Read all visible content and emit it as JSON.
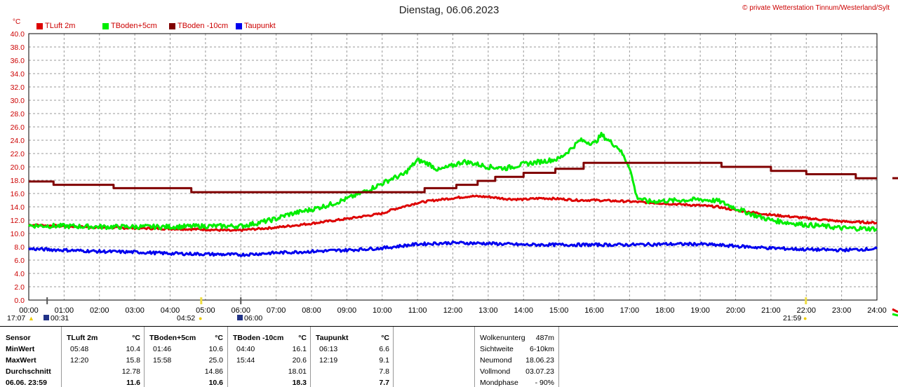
{
  "header": {
    "title": "Dienstag, 06.06.2023",
    "copyright": "© private Wetterstation Tinnum/Westerland/Sylt",
    "unit": "°C"
  },
  "legend": [
    {
      "label": "TLuft 2m",
      "color": "#dd0000"
    },
    {
      "label": "TBoden+5cm",
      "color": "#00ee00"
    },
    {
      "label": "TBoden -10cm",
      "color": "#800000"
    },
    {
      "label": "Taupunkt",
      "color": "#0000ee"
    }
  ],
  "sun_moon": {
    "moonset": "17:07",
    "moonrise": "00:31",
    "sunrise": "04:52",
    "moon_label": "06:00",
    "sunset": "21:59"
  },
  "chart_data": {
    "type": "line",
    "title": "Dienstag, 06.06.2023",
    "ylabel": "°C",
    "ylim": [
      0,
      40
    ],
    "xlim": [
      0,
      24
    ],
    "grid": true,
    "y_ticks": [
      "0.0",
      "2.0",
      "4.0",
      "6.0",
      "8.0",
      "10.0",
      "12.0",
      "14.0",
      "16.0",
      "18.0",
      "20.0",
      "22.0",
      "24.0",
      "26.0",
      "28.0",
      "30.0",
      "32.0",
      "34.0",
      "36.0",
      "38.0",
      "40.0"
    ],
    "x_ticks": [
      "00:00",
      "01:00",
      "02:00",
      "03:00",
      "04:00",
      "05:00",
      "06:00",
      "07:00",
      "08:00",
      "09:00",
      "10:00",
      "11:00",
      "12:00",
      "13:00",
      "14:00",
      "15:00",
      "16:00",
      "17:00",
      "18:00",
      "19:00",
      "20:00",
      "21:00",
      "22:00",
      "23:00",
      "24:00"
    ],
    "series": [
      {
        "name": "TLuft 2m",
        "color": "#dd0000",
        "x": [
          0,
          1,
          2,
          3,
          4,
          5,
          5.8,
          6,
          7,
          8,
          9,
          10,
          10.3,
          11,
          11.5,
          12,
          12.5,
          13,
          13.5,
          14,
          14.5,
          15,
          15.5,
          16,
          16.5,
          17,
          18,
          19,
          19.5,
          20,
          21,
          22,
          23,
          24
        ],
        "y": [
          11.3,
          11.1,
          10.9,
          10.8,
          10.7,
          10.6,
          10.4,
          10.5,
          10.9,
          11.5,
          12.2,
          13.0,
          13.6,
          14.6,
          15.0,
          15.3,
          15.6,
          15.5,
          15.2,
          15.1,
          15.3,
          15.2,
          15.0,
          15.0,
          14.9,
          14.8,
          14.5,
          14.2,
          14.0,
          13.5,
          12.8,
          12.3,
          11.8,
          11.6
        ]
      },
      {
        "name": "TBoden+5cm",
        "color": "#00ee00",
        "x": [
          0,
          1,
          2,
          3,
          4,
          5,
          6,
          6.5,
          7,
          7.3,
          8,
          8.5,
          9,
          9.5,
          10,
          10.3,
          10.6,
          11,
          11.3,
          11.6,
          12,
          12.3,
          12.6,
          13,
          13.5,
          14,
          14.5,
          15,
          15.3,
          15.6,
          16,
          16.2,
          16.4,
          16.7,
          17,
          17.2,
          17.5,
          18,
          18.5,
          19,
          19.5,
          20,
          20.5,
          21,
          21.5,
          22,
          22.5,
          23,
          24
        ],
        "y": [
          11.2,
          11.1,
          11.0,
          11.0,
          11.0,
          11.1,
          11.1,
          11.6,
          12.2,
          12.8,
          13.6,
          14.3,
          15.2,
          16.3,
          17.5,
          18.3,
          18.8,
          21.0,
          20.5,
          19.5,
          20.2,
          20.8,
          20.5,
          20.0,
          19.8,
          20.4,
          20.8,
          21.2,
          22.5,
          24.0,
          23.5,
          24.8,
          24.0,
          22.8,
          20.0,
          15.5,
          14.8,
          14.9,
          15.0,
          15.1,
          14.9,
          13.8,
          12.8,
          12.0,
          11.6,
          11.3,
          11.1,
          10.8,
          10.7
        ]
      },
      {
        "name": "TBoden -10cm",
        "color": "#800000",
        "x": [
          0,
          0.7,
          0.7,
          2.4,
          2.4,
          4.6,
          4.6,
          8.6,
          8.6,
          11.2,
          11.2,
          12.1,
          12.1,
          12.7,
          12.7,
          13.2,
          13.2,
          14.0,
          14.0,
          14.9,
          14.9,
          15.7,
          15.7,
          19.6,
          19.6,
          21.0,
          21.0,
          22.0,
          22.0,
          23.4,
          23.4,
          24
        ],
        "y": [
          17.8,
          17.8,
          17.3,
          17.3,
          16.8,
          16.8,
          16.2,
          16.2,
          16.2,
          16.2,
          16.8,
          16.8,
          17.3,
          17.3,
          17.9,
          17.9,
          18.5,
          18.5,
          19.1,
          19.1,
          19.7,
          19.7,
          20.6,
          20.6,
          20.0,
          20.0,
          19.4,
          19.4,
          18.9,
          18.9,
          18.3,
          18.3
        ]
      },
      {
        "name": "Taupunkt",
        "color": "#0000ee",
        "x": [
          0,
          1,
          2,
          3,
          4,
          5,
          6,
          7,
          8,
          9,
          10,
          11,
          12,
          13,
          14,
          15,
          16,
          17,
          18,
          19,
          20,
          21,
          22,
          23,
          24
        ],
        "y": [
          7.7,
          7.5,
          7.3,
          7.2,
          7.0,
          6.9,
          6.8,
          7.1,
          7.3,
          7.5,
          7.8,
          8.4,
          8.6,
          8.5,
          8.3,
          8.3,
          8.3,
          8.3,
          8.4,
          8.4,
          8.1,
          7.8,
          7.6,
          7.5,
          7.7
        ]
      }
    ]
  },
  "stats": {
    "headers": {
      "sensor": "Sensor",
      "unit": "°C"
    },
    "columns": [
      {
        "name": "TLuft 2m",
        "min_time": "05:48",
        "min": "10.4",
        "max_time": "12:20",
        "max": "15.8",
        "avg": "12.78",
        "current": "11.6"
      },
      {
        "name": "TBoden+5cm",
        "min_time": "01:46",
        "min": "10.6",
        "max_time": "15:58",
        "max": "25.0",
        "avg": "14.86",
        "current": "10.6"
      },
      {
        "name": "TBoden -10cm",
        "min_time": "04:40",
        "min": "16.1",
        "max_time": "15:44",
        "max": "20.6",
        "avg": "18.01",
        "current": "18.3"
      },
      {
        "name": "Taupunkt",
        "min_time": "06:13",
        "min": "6.6",
        "max_time": "12:19",
        "max": "9.1",
        "avg": "7.8",
        "current": "7.7"
      }
    ],
    "row_labels": {
      "min": "MinWert",
      "max": "MaxWert",
      "avg": "Durchschnitt",
      "current": "06.06. 23:59"
    }
  },
  "info": [
    {
      "label": "Wolkenunterg",
      "value": "487m"
    },
    {
      "label": "Sichtweite",
      "value": "6-10km"
    },
    {
      "label": "Neumond",
      "value": "18.06.23"
    },
    {
      "label": "Vollmond",
      "value": "03.07.23"
    },
    {
      "label": "Mondphase",
      "value": "- 90%"
    }
  ]
}
